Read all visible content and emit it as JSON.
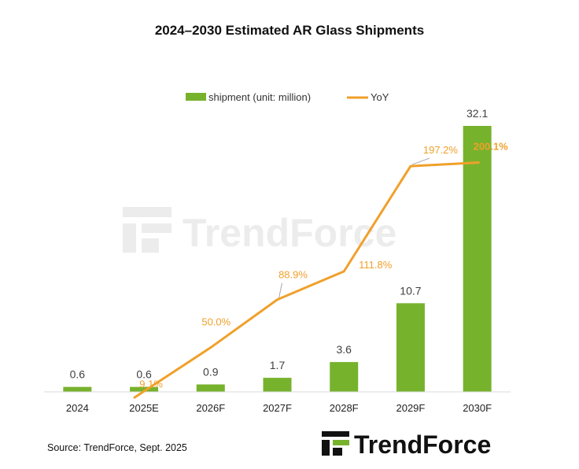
{
  "chart_data": {
    "type": "bar",
    "title": "2024–2030 Estimated AR Glass Shipments",
    "categories": [
      "2024",
      "2025E",
      "2026F",
      "2027F",
      "2028F",
      "2029F",
      "2030F"
    ],
    "series": [
      {
        "name": "shipment (unit: million)",
        "type": "bar",
        "values": [
          0.6,
          0.6,
          0.9,
          1.7,
          3.6,
          10.7,
          32.1
        ],
        "labels": [
          "0.6",
          "0.6",
          "0.9",
          "1.7",
          "3.6",
          "10.7",
          "32.1"
        ],
        "color": "#77B22D"
      },
      {
        "name": "YoY",
        "type": "line",
        "values": [
          null,
          9.1,
          50.0,
          88.9,
          111.8,
          197.2,
          200.1
        ],
        "labels": [
          "",
          "9.1%",
          "50.0%",
          "88.9%",
          "111.8%",
          "197.2%",
          "200.1%"
        ],
        "color": "#F0A02A"
      }
    ],
    "legend_position": "top",
    "grid": false
  },
  "footer": {
    "source": "Source: TrendForce, Sept. 2025",
    "brand": "TrendForce",
    "watermark": "TrendForce"
  }
}
